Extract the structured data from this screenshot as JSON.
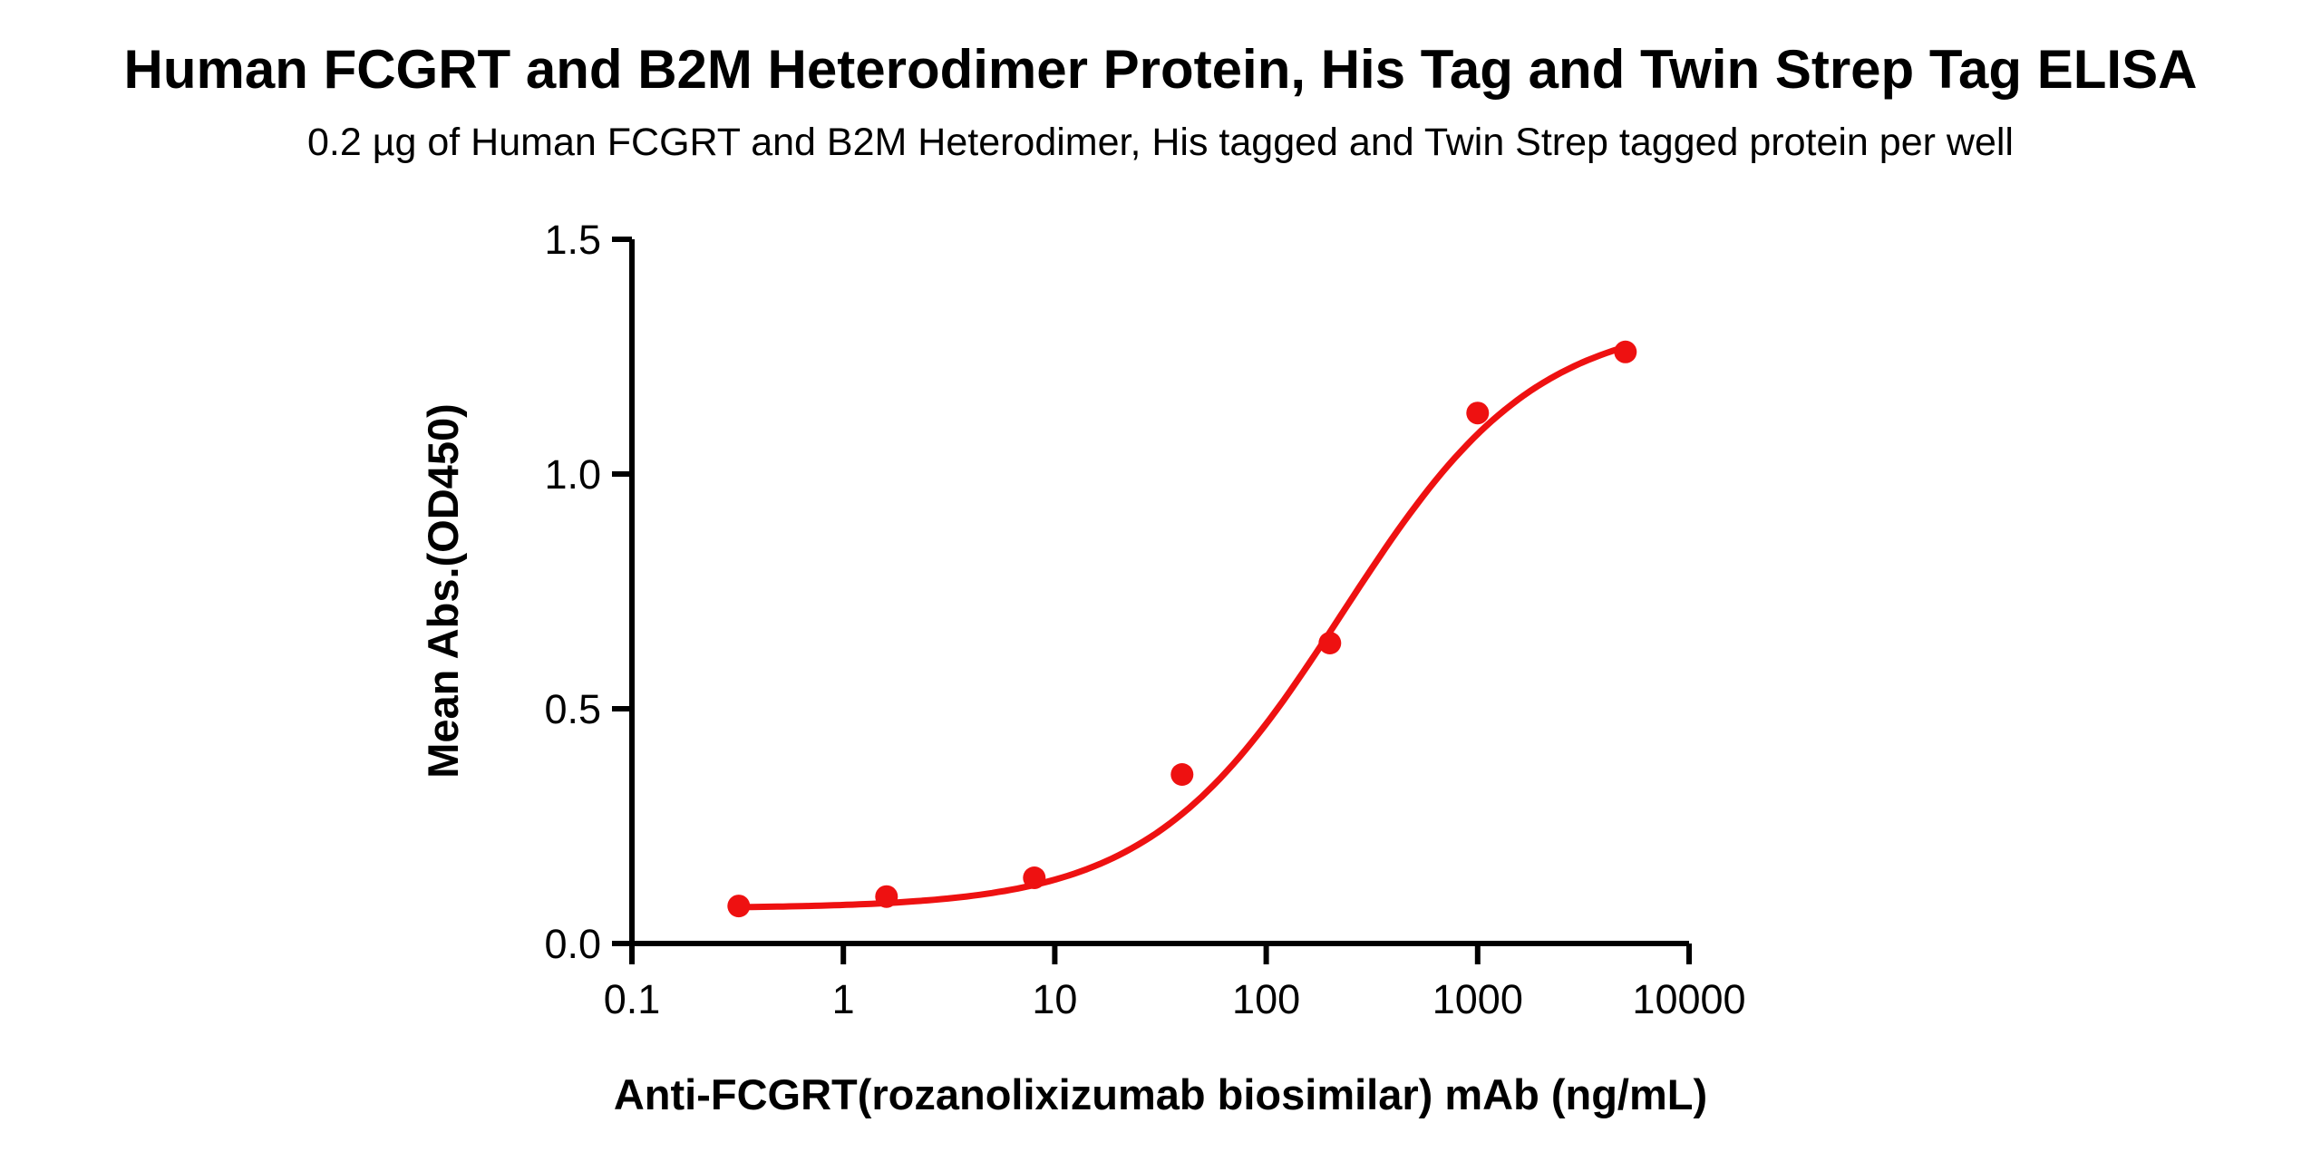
{
  "header": {
    "title": "Human FCGRT and B2M Heterodimer Protein, His Tag and Twin Strep Tag ELISA",
    "subtitle": "0.2 µg of Human FCGRT and B2M Heterodimer, His tagged and Twin Strep tagged protein per well"
  },
  "chart_data": {
    "type": "scatter",
    "title": "Human FCGRT and B2M Heterodimer Protein, His Tag and Twin Strep Tag ELISA",
    "subtitle": "0.2 µg of Human FCGRT and B2M Heterodimer, His tagged and Twin Strep tagged protein per well",
    "xlabel": "Anti-FCGRT(rozanolixizumab biosimilar) mAb (ng/mL)",
    "ylabel": "Mean Abs.(OD450)",
    "x_scale": "log10",
    "y_scale": "linear",
    "xlim": [
      0.1,
      10000
    ],
    "ylim": [
      0,
      1.5
    ],
    "x_tick_values": [
      0.1,
      1,
      10,
      100,
      1000,
      10000
    ],
    "x_tick_labels": [
      "0.1",
      "1",
      "10",
      "100",
      "1000",
      "10000"
    ],
    "y_tick_values": [
      0,
      0.5,
      1,
      1.5
    ],
    "y_tick_labels": [
      "0.0",
      "0.5",
      "1.0",
      "1.5"
    ],
    "grid": false,
    "legend": "none",
    "axis_color": "#000000",
    "x": [
      0.32,
      1.6,
      8,
      40,
      200,
      1000,
      5000
    ],
    "series": [
      {
        "name": "Anti-FCGRT(rozanolixizumab biosimilar) mAb",
        "color": "#EE1111",
        "values": [
          0.08,
          0.1,
          0.14,
          0.36,
          0.64,
          1.13,
          1.26
        ]
      }
    ],
    "marker": {
      "shape": "circle",
      "radius": 12.5,
      "color": "#EE1111"
    },
    "fit_curve": {
      "model": "4PL",
      "bottom": 0.075,
      "top": 1.335,
      "ec50": 230,
      "hill": 0.95,
      "x_range": [
        0.32,
        5000
      ],
      "color": "#EE1111",
      "stroke_width": 7
    }
  }
}
